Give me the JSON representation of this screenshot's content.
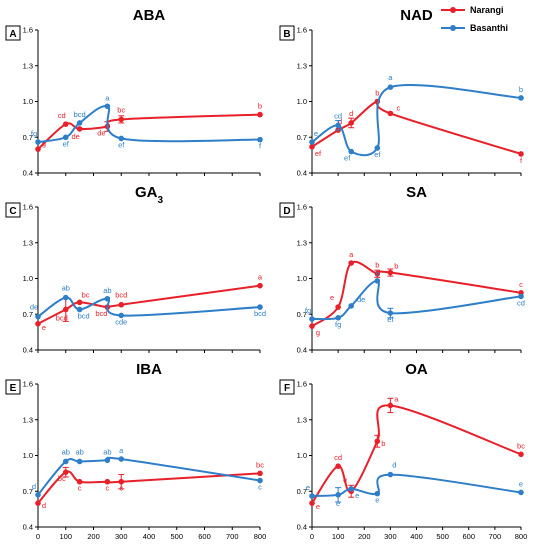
{
  "colors": {
    "red": "#e8202a",
    "blue": "#2e7ec8",
    "axis": "#000000"
  },
  "legend": {
    "series1": "Narangi",
    "series2": "Basanthi"
  },
  "chart_data": [
    {
      "type": "line",
      "letter": "A",
      "title": "ABA",
      "show_x_ticks": false,
      "x": [
        0,
        100,
        150,
        250,
        300,
        800
      ],
      "ylim": [
        0.4,
        1.6
      ],
      "x_ticks": [
        "0",
        "100",
        "200",
        "300",
        "400",
        "500",
        "600",
        "700",
        "800"
      ],
      "y_ticks": [
        "0.4",
        "0.7",
        "1.0",
        "1.3",
        "1.6"
      ],
      "series": [
        {
          "name": "Narangi",
          "color": "#e8202a",
          "values": [
            0.6,
            0.81,
            0.77,
            0.79,
            0.85,
            0.89
          ],
          "errors": [
            0,
            0,
            0,
            0.04,
            0.03,
            0
          ],
          "labels": [
            "g",
            "cd",
            "de",
            "de",
            "bc",
            "b"
          ]
        },
        {
          "name": "Basanthi",
          "color": "#2e7ec8",
          "values": [
            0.66,
            0.7,
            0.82,
            0.96,
            0.69,
            0.68
          ],
          "errors": [
            0,
            0,
            0,
            0,
            0,
            0
          ],
          "labels": [
            "fg",
            "ef",
            "bcd",
            "a",
            "ef",
            "f"
          ]
        }
      ]
    },
    {
      "type": "line",
      "letter": "B",
      "title": "NAD",
      "show_x_ticks": false,
      "x": [
        0,
        100,
        150,
        250,
        300,
        800
      ],
      "ylim": [
        0.4,
        1.6
      ],
      "x_ticks": [
        "0",
        "100",
        "200",
        "300",
        "400",
        "500",
        "600",
        "700",
        "800"
      ],
      "y_ticks": [
        "0.4",
        "0.7",
        "1.0",
        "1.3",
        "1.6"
      ],
      "series": [
        {
          "name": "Narangi",
          "color": "#e8202a",
          "values": [
            0.62,
            0.76,
            0.82,
            1.0,
            0.9,
            0.56
          ],
          "errors": [
            0,
            0,
            0.04,
            0,
            0,
            0
          ],
          "labels": [
            "ef",
            "d",
            "d",
            "b",
            "c",
            "f"
          ]
        },
        {
          "name": "Basanthi",
          "color": "#2e7ec8",
          "values": [
            0.66,
            0.8,
            0.58,
            0.61,
            1.12,
            1.03
          ],
          "errors": [
            0,
            0.04,
            0,
            0,
            0,
            0
          ],
          "labels": [
            "e",
            "cd",
            "ef",
            "ef",
            "a",
            "b"
          ]
        }
      ]
    },
    {
      "type": "line",
      "letter": "C",
      "title": "GA",
      "title_sub": "3",
      "show_x_ticks": false,
      "x": [
        0,
        100,
        150,
        250,
        300,
        800
      ],
      "ylim": [
        0.4,
        1.6
      ],
      "x_ticks": [
        "0",
        "100",
        "200",
        "300",
        "400",
        "500",
        "600",
        "700",
        "800"
      ],
      "y_ticks": [
        "0.4",
        "0.7",
        "1.0",
        "1.3",
        "1.6"
      ],
      "series": [
        {
          "name": "Narangi",
          "color": "#e8202a",
          "values": [
            0.62,
            0.74,
            0.8,
            0.76,
            0.78,
            0.94
          ],
          "errors": [
            0,
            0.1,
            0,
            0,
            0,
            0
          ],
          "labels": [
            "e",
            "bcd",
            "bc",
            "bcd",
            "bcd",
            "a"
          ]
        },
        {
          "name": "Basanthi",
          "color": "#2e7ec8",
          "values": [
            0.68,
            0.84,
            0.74,
            0.83,
            0.69,
            0.76
          ],
          "errors": [
            0,
            0,
            0,
            0,
            0,
            0
          ],
          "labels": [
            "de",
            "ab",
            "bcd",
            "ab",
            "cde",
            "bcd"
          ]
        }
      ]
    },
    {
      "type": "line",
      "letter": "D",
      "title": "SA",
      "show_x_ticks": false,
      "x": [
        0,
        100,
        150,
        250,
        300,
        800
      ],
      "ylim": [
        0.4,
        1.6
      ],
      "x_ticks": [
        "0",
        "100",
        "200",
        "300",
        "400",
        "500",
        "600",
        "700",
        "800"
      ],
      "y_ticks": [
        "0.4",
        "0.7",
        "1.0",
        "1.3",
        "1.6"
      ],
      "series": [
        {
          "name": "Narangi",
          "color": "#e8202a",
          "values": [
            0.6,
            0.76,
            1.13,
            1.04,
            1.05,
            0.88
          ],
          "errors": [
            0,
            0,
            0,
            0.03,
            0.03,
            0
          ],
          "labels": [
            "g",
            "e",
            "a",
            "b",
            "b",
            "c"
          ]
        },
        {
          "name": "Basanthi",
          "color": "#2e7ec8",
          "values": [
            0.66,
            0.67,
            0.77,
            0.98,
            0.71,
            0.85
          ],
          "errors": [
            0,
            0,
            0,
            0,
            0.04,
            0
          ],
          "labels": [
            "fg",
            "fg",
            "de",
            "b",
            "ef",
            "cd"
          ]
        }
      ]
    },
    {
      "type": "line",
      "letter": "E",
      "title": "IBA",
      "show_x_ticks": true,
      "x": [
        0,
        100,
        150,
        250,
        300,
        800
      ],
      "ylim": [
        0.4,
        1.6
      ],
      "x_ticks": [
        "0",
        "100",
        "200",
        "300",
        "400",
        "500",
        "600",
        "700",
        "800"
      ],
      "y_ticks": [
        "0.4",
        "0.7",
        "1.0",
        "1.3",
        "1.6"
      ],
      "series": [
        {
          "name": "Narangi",
          "color": "#e8202a",
          "values": [
            0.6,
            0.86,
            0.78,
            0.78,
            0.78,
            0.85
          ],
          "errors": [
            0,
            0.04,
            0,
            0,
            0.06,
            0
          ],
          "labels": [
            "d",
            "bc",
            "c",
            "c",
            "c",
            "bc"
          ]
        },
        {
          "name": "Basanthi",
          "color": "#2e7ec8",
          "values": [
            0.67,
            0.95,
            0.95,
            0.96,
            0.97,
            0.79
          ],
          "errors": [
            0,
            0,
            0,
            0,
            0,
            0
          ],
          "labels": [
            "d",
            "ab",
            "ab",
            "ab",
            "a",
            "c"
          ]
        }
      ]
    },
    {
      "type": "line",
      "letter": "F",
      "title": "OA",
      "show_x_ticks": true,
      "x": [
        0,
        100,
        150,
        250,
        300,
        800
      ],
      "ylim": [
        0.4,
        1.6
      ],
      "x_ticks": [
        "0",
        "100",
        "200",
        "300",
        "400",
        "500",
        "600",
        "700",
        "800"
      ],
      "y_ticks": [
        "0.4",
        "0.7",
        "1.0",
        "1.3",
        "1.6"
      ],
      "series": [
        {
          "name": "Narangi",
          "color": "#e8202a",
          "values": [
            0.6,
            0.91,
            0.7,
            1.12,
            1.42,
            1.01
          ],
          "errors": [
            0,
            0,
            0.05,
            0.05,
            0.06,
            0
          ],
          "labels": [
            "e",
            "cd",
            "e",
            "b",
            "a",
            "bc"
          ]
        },
        {
          "name": "Basanthi",
          "color": "#2e7ec8",
          "values": [
            0.66,
            0.67,
            0.72,
            0.68,
            0.84,
            0.69
          ],
          "errors": [
            0,
            0.06,
            0,
            0,
            0,
            0
          ],
          "labels": [
            "e",
            "e",
            "e",
            "e",
            "d",
            "e"
          ]
        }
      ]
    }
  ]
}
